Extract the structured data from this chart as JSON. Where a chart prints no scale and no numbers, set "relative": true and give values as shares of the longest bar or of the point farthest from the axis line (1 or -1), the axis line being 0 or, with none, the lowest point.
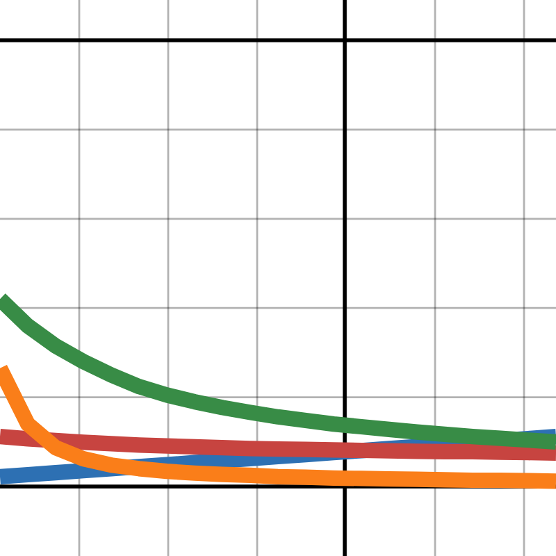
{
  "chart_data": {
    "type": "line",
    "relative": true,
    "grid": true,
    "categories": [
      null,
      null,
      null,
      null,
      null,
      null,
      null,
      null,
      null,
      null,
      null,
      null,
      null,
      null,
      null,
      null,
      null,
      null,
      null,
      null,
      null
    ],
    "series": [
      {
        "color": "#2d70b3",
        "values": [
          0.022,
          0.0265,
          0.031,
          0.0355,
          0.04,
          0.0445,
          0.049,
          0.0535,
          0.058,
          0.0625,
          0.067,
          0.0715,
          0.076,
          0.0805,
          0.085,
          0.0895,
          0.094,
          0.0985,
          0.103,
          0.1075,
          0.112
        ]
      },
      {
        "color": "#c74440",
        "values": [
          0.112,
          0.107,
          0.103,
          0.099,
          0.096,
          0.093,
          0.091,
          0.089,
          0.087,
          0.085,
          0.084,
          0.083,
          0.082,
          0.081,
          0.08,
          0.079,
          0.078,
          0.078,
          0.077,
          0.076,
          0.075
        ]
      },
      {
        "color": "#388c46",
        "values": [
          0.42,
          0.36,
          0.315,
          0.28,
          0.25,
          0.224,
          0.205,
          0.19,
          0.177,
          0.166,
          0.156,
          0.148,
          0.14,
          0.134,
          0.128,
          0.122,
          0.117,
          0.112,
          0.108,
          0.104,
          0.1
        ]
      },
      {
        "color": "#fa7e19",
        "values": [
          0.265,
          0.14,
          0.087,
          0.062,
          0.048,
          0.04,
          0.034,
          0.03,
          0.027,
          0.025,
          0.022,
          0.021,
          0.019,
          0.018,
          0.017,
          0.016,
          0.015,
          0.014,
          0.014,
          0.013,
          0.012
        ]
      },
      {
        "color": "#000000",
        "values": [
          1,
          1,
          1,
          1,
          1,
          1,
          1,
          1,
          1,
          1,
          1,
          1,
          1,
          1,
          1,
          1,
          1,
          1,
          1,
          1,
          1
        ]
      }
    ]
  }
}
